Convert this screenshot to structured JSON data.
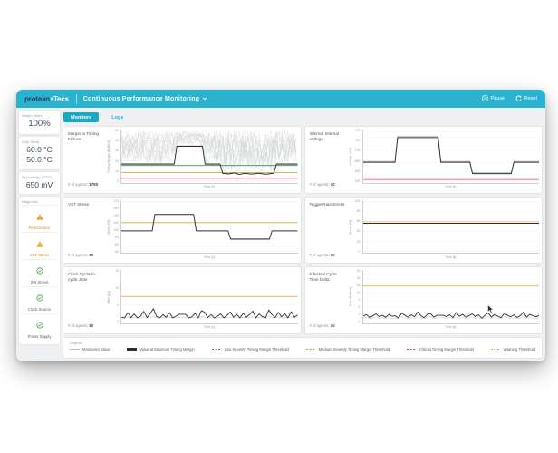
{
  "header": {
    "logo_part1": "protean",
    "logo_part2": "Tecs",
    "title": "Continuous Performance Monitoring",
    "pause_label": "Pause",
    "reset_label": "Reset"
  },
  "tabs": {
    "monitors": "Monitors",
    "logs": "Logs"
  },
  "sidebar": {
    "cards": [
      {
        "label": "Health Index",
        "values": [
          "100%"
        ]
      },
      {
        "label": "Chip Temp",
        "values": [
          "60.0 °C",
          "50.0 °C"
        ]
      },
      {
        "label": "Set Voltage (VDD)",
        "values": [
          "650 mV"
        ]
      }
    ],
    "diagnosis": {
      "label": "Diagnosis",
      "items": [
        {
          "label": "Performance",
          "status": "warning"
        },
        {
          "label": "VST Stress",
          "status": "warning"
        },
        {
          "label": "SW Stress",
          "status": "ok"
        },
        {
          "label": "Clock Source",
          "status": "ok"
        },
        {
          "label": "Power Supply",
          "status": "ok"
        }
      ]
    }
  },
  "colors": {
    "accent_teal": "#29b3ce",
    "warning_orange": "#e8930c",
    "ok_green": "#43a047",
    "series_black": "#2b2f33",
    "series_gray": "#b9bdc1"
  },
  "legend": {
    "label": "Legend",
    "items": [
      {
        "label": "Monitored Value",
        "color": "#b9bdc1",
        "style": "solid"
      },
      {
        "label": "Value at Minimum Timing Margin",
        "color": "#2b2f33",
        "style": "thick"
      },
      {
        "label": "Low Severity Timing Margin Threshold",
        "color": "#35a048",
        "style": "dashed"
      },
      {
        "label": "Medium Severity Timing Margin Threshold",
        "color": "#b4a820",
        "style": "dashed"
      },
      {
        "label": "Critical Timing Margin Threshold",
        "color": "#e0475a",
        "style": "dashed"
      },
      {
        "label": "Warning Threshold",
        "color": "#f2a33c",
        "style": "dashed"
      }
    ]
  },
  "chart_data": [
    {
      "type": "line",
      "title": "Margin to Timing Failure",
      "agents_label": "# of agents:",
      "agents_value": "1780",
      "ylabel": "Timing Margin [Buffers]",
      "xlabel": "Time [s]",
      "ymin": 0,
      "ymax": 50,
      "yticks": [
        50,
        40,
        30,
        20,
        10,
        0
      ],
      "noise_band": {
        "seed": 7,
        "lines": 14,
        "offset": 1.5,
        "top": 50,
        "color": "#d3d5d7"
      },
      "thresholds": [
        {
          "value": 15.5,
          "color": "#3f8d4a"
        },
        {
          "value": 8.2,
          "color": "#b4a820"
        },
        {
          "value": 2.5,
          "color": "#cf5864"
        }
      ],
      "series": [
        {
          "key": "min",
          "color": "#2b2f33",
          "width": 1.0,
          "points": [
            [
              0,
              17
            ],
            [
              30,
              17
            ],
            [
              31.5,
              35
            ],
            [
              46,
              35
            ],
            [
              47.5,
              17
            ],
            [
              56,
              17
            ],
            [
              57.5,
              7.5
            ],
            [
              61,
              7
            ],
            [
              64,
              8
            ],
            [
              67,
              6.5
            ],
            [
              70,
              7.5
            ],
            [
              74,
              6.8
            ],
            [
              78,
              7.6
            ],
            [
              82,
              6.6
            ],
            [
              85,
              7.4
            ],
            [
              86.5,
              7.5
            ],
            [
              88,
              17
            ],
            [
              100,
              17
            ]
          ]
        }
      ]
    },
    {
      "type": "line",
      "title": "Inferred Internal Voltage",
      "agents_label": "# of agents:",
      "agents_value": "10",
      "ylabel": "Voltage [mV]",
      "xlabel": "Time [s]",
      "ymin": 575,
      "ymax": 775,
      "yticks": [
        775,
        750,
        700,
        650,
        600,
        575
      ],
      "thresholds": [
        {
          "value": 580,
          "color": "#ee6677"
        }
      ],
      "series": [
        {
          "key": "monitored",
          "color": "#b9bdc1",
          "width": 0.8,
          "points": [
            [
              0,
              654
            ],
            [
              18,
              654
            ],
            [
              19.5,
              756
            ],
            [
              42.5,
              756
            ],
            [
              44,
              654
            ],
            [
              60.5,
              654
            ],
            [
              62,
              609
            ],
            [
              84,
              609
            ],
            [
              85.5,
              654
            ],
            [
              100,
              654
            ]
          ]
        },
        {
          "key": "min",
          "color": "#2b2f33",
          "width": 1.0,
          "points": [
            [
              0,
              650
            ],
            [
              18,
              650
            ],
            [
              19.5,
              750
            ],
            [
              42.5,
              750
            ],
            [
              44,
              650
            ],
            [
              60.5,
              650
            ],
            [
              62,
              604
            ],
            [
              84,
              604
            ],
            [
              85.5,
              650
            ],
            [
              100,
              650
            ]
          ]
        }
      ]
    },
    {
      "type": "line",
      "title": "VST Stress",
      "agents_label": "# of agents:",
      "agents_value": "10",
      "ylabel": "Stress [%]",
      "xlabel": "Time [s]",
      "ymin": 50,
      "ymax": 170,
      "yticks": [
        170,
        160,
        140,
        120,
        100,
        80,
        60,
        50
      ],
      "thresholds": [
        {
          "value": 120,
          "color": "#c9b02e"
        }
      ],
      "series": [
        {
          "key": "min",
          "color": "#2b2f33",
          "width": 1.0,
          "points": [
            [
              0,
              100
            ],
            [
              17.5,
              100
            ],
            [
              19,
              140
            ],
            [
              41,
              140
            ],
            [
              42.5,
              100
            ],
            [
              60.5,
              100
            ],
            [
              62,
              80
            ],
            [
              84,
              80
            ],
            [
              85.5,
              100
            ],
            [
              100,
              100
            ]
          ]
        }
      ]
    },
    {
      "type": "line",
      "title": "Toggle Rate Stress",
      "agents_label": "# of agents:",
      "agents_value": "10",
      "ylabel": "Stress [%]",
      "xlabel": "Time [s]",
      "ymin": 0,
      "ymax": 100,
      "yticks": [
        100,
        80,
        60,
        40,
        20,
        0
      ],
      "thresholds": [
        {
          "value": 60,
          "color": "#f0ad4e"
        }
      ],
      "series": [
        {
          "key": "min",
          "color": "#2b2f33",
          "width": 1.0,
          "points": [
            [
              0,
              57
            ],
            [
              100,
              57
            ]
          ]
        }
      ]
    },
    {
      "type": "line",
      "title": "Clock Cycle-to-cycle Jitter",
      "agents_label": "# of agents:",
      "agents_value": "10",
      "ylabel": "Jitter [ps]",
      "xlabel": "Time [s]",
      "ymin": 0,
      "ymax": 15,
      "yticks": [
        15,
        10,
        5,
        1
      ],
      "thresholds": [
        {
          "value": 7.5,
          "color": "#f0ad4e"
        }
      ],
      "series": [
        {
          "key": "monitored",
          "color": "#c9ccd0",
          "width": 0.6,
          "values": [
            1,
            1.1,
            1.3,
            1,
            1.2,
            1,
            1,
            1.4,
            1,
            1.1,
            1.5,
            1,
            1,
            1.2,
            1,
            1.3,
            1,
            1,
            1.2,
            1.2,
            1.2,
            1,
            1,
            1.3,
            1,
            1.4,
            1.3,
            1,
            1.1,
            1,
            1,
            1.2,
            1,
            1.1,
            1.3,
            1,
            1.1,
            1,
            1.2,
            1,
            1.1,
            1.4,
            1,
            1.2,
            1,
            1,
            1.5,
            1.1,
            1,
            1.3,
            1,
            1.2,
            1,
            1.4,
            1,
            1.1
          ]
        },
        {
          "key": "min",
          "color": "#2b2f33",
          "width": 0.9,
          "values": [
            1.2,
            1,
            2.6,
            1.1,
            2.2,
            1,
            1.5,
            3,
            1.1,
            2.3,
            3.8,
            1.4,
            1,
            2,
            1.2,
            2.6,
            1,
            1.5,
            2.1,
            2.1,
            2.1,
            1,
            1.3,
            2.4,
            1,
            3.2,
            2.7,
            1.1,
            2,
            1,
            1.5,
            2.2,
            1,
            1.8,
            2.8,
            1.2,
            2.1,
            1,
            2.4,
            1.2,
            2,
            3.1,
            1,
            2.2,
            1.4,
            1,
            3.4,
            2,
            1.1,
            2.7,
            1.3,
            2.3,
            1,
            2.9,
            1.2,
            1.9
          ]
        }
      ]
    },
    {
      "type": "line",
      "title": "Effective Cycle Time Delta",
      "agents_label": "# of agents:",
      "agents_value": "10",
      "ylabel": "Time [Buffers]",
      "xlabel": "Time [s]",
      "ymin": 0,
      "ymax": 21,
      "yticks": [
        20,
        18,
        15,
        12,
        9,
        6,
        3,
        1
      ],
      "thresholds": [
        {
          "value": 15,
          "color": "#eab53e"
        }
      ],
      "series": [
        {
          "key": "monitored",
          "color": "#c9ccd0",
          "width": 0.6,
          "values": [
            1.3,
            1.7,
            1,
            1.4,
            1.9,
            1.1,
            1.5,
            1,
            1.8,
            1.2,
            1.4,
            1,
            2.1,
            1.5,
            1,
            1.7,
            1.1,
            2.3,
            1.4,
            1,
            1.8,
            2,
            1,
            1.5,
            1.5,
            1.5,
            1.1,
            1.6,
            1,
            2.2,
            1.2,
            1.8,
            1,
            1.4,
            1.9,
            1.1,
            1.6,
            1,
            1.5,
            2.1,
            1,
            1.8,
            1.2,
            1,
            2,
            1.5,
            1.1,
            1.6,
            1,
            1.4,
            2.3,
            1,
            1.8,
            1.4,
            1.1,
            1.5
          ]
        },
        {
          "key": "min",
          "color": "#2b2f33",
          "width": 0.9,
          "values": [
            2.2,
            2.8,
            1.5,
            2.3,
            3.1,
            1.9,
            2.5,
            1.6,
            2.9,
            2.1,
            2.3,
            1.3,
            3.5,
            2.5,
            1.7,
            2.7,
            1.9,
            3.9,
            2.3,
            1.5,
            2.9,
            3.3,
            1.7,
            2.5,
            2.5,
            2.5,
            1.9,
            2.7,
            1.5,
            3.7,
            2.1,
            2.9,
            1.7,
            2.3,
            3.1,
            1.9,
            2.7,
            1.3,
            2.5,
            3.5,
            1.7,
            2.9,
            2.1,
            1.5,
            3.3,
            2.5,
            1.9,
            2.7,
            1.6,
            2.3,
            3.9,
            1.7,
            2.9,
            2.3,
            1.9,
            2.6
          ]
        }
      ]
    }
  ]
}
